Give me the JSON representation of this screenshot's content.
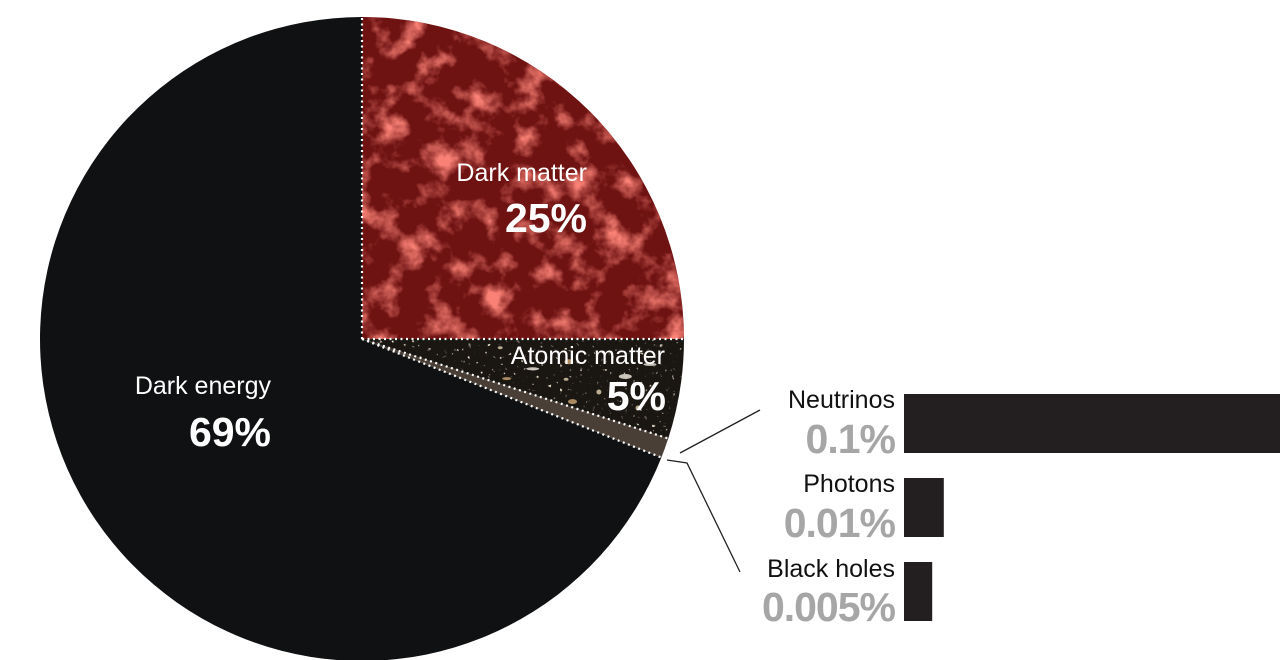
{
  "chart_data": [
    {
      "type": "pie",
      "slices": [
        {
          "label": "Dark energy",
          "value": 69,
          "value_label": "69%",
          "color": "#0f1112",
          "label_color": "#ffffff"
        },
        {
          "label": "Dark matter",
          "value": 25,
          "value_label": "25%",
          "color": "#6e1212",
          "label_color": "#ffffff"
        },
        {
          "label": "Atomic matter",
          "value": 5,
          "value_label": "5%",
          "color": "#1a1612",
          "label_color": "#ffffff"
        }
      ],
      "separator_style": "dotted white"
    },
    {
      "type": "bar",
      "orientation": "horizontal",
      "categories": [
        "Neutrinos",
        "Photons",
        "Black holes"
      ],
      "values": [
        0.1,
        0.01,
        0.005
      ],
      "value_labels": [
        "0.1%",
        "0.01%",
        "0.005%"
      ],
      "bar_color": "#231f20",
      "label_color": "#111111",
      "value_label_color": "#a6a6a6"
    }
  ]
}
